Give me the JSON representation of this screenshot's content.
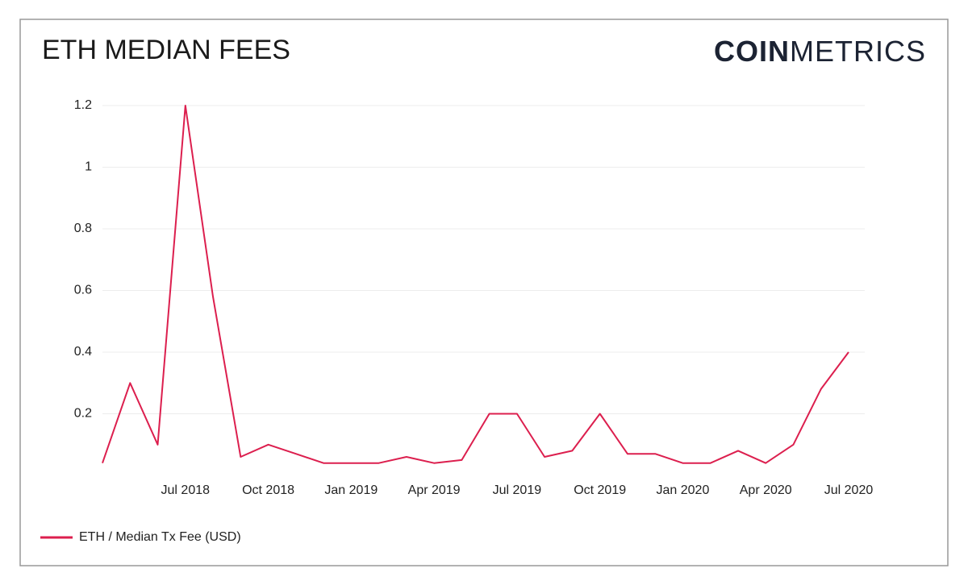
{
  "chart_data": {
    "type": "line",
    "title": "ETH MEDIAN FEES",
    "logo": {
      "bold": "COIN",
      "light": "METRICS"
    },
    "x": [
      "2018-04",
      "2018-05",
      "2018-06",
      "2018-07",
      "2018-08",
      "2018-09",
      "2018-10",
      "2018-11",
      "2018-12",
      "2019-01",
      "2019-02",
      "2019-03",
      "2019-04",
      "2019-05",
      "2019-06",
      "2019-07",
      "2019-08",
      "2019-09",
      "2019-10",
      "2019-11",
      "2019-12",
      "2020-01",
      "2020-02",
      "2020-03",
      "2020-04",
      "2020-05",
      "2020-06",
      "2020-07"
    ],
    "series": [
      {
        "name": "ETH / Median Tx Fee (USD)",
        "color": "#dc1f4e",
        "values": [
          0.04,
          0.3,
          0.1,
          1.2,
          0.58,
          0.06,
          0.1,
          0.07,
          0.04,
          0.04,
          0.04,
          0.06,
          0.04,
          0.05,
          0.2,
          0.2,
          0.06,
          0.08,
          0.2,
          0.07,
          0.07,
          0.04,
          0.04,
          0.08,
          0.04,
          0.1,
          0.28,
          0.4
        ]
      }
    ],
    "xlim": [
      "2018-04",
      "2020-07"
    ],
    "xticks": [
      {
        "value": "2018-07",
        "label": "Jul 2018"
      },
      {
        "value": "2018-10",
        "label": "Oct 2018"
      },
      {
        "value": "2019-01",
        "label": "Jan 2019"
      },
      {
        "value": "2019-04",
        "label": "Apr 2019"
      },
      {
        "value": "2019-07",
        "label": "Jul 2019"
      },
      {
        "value": "2019-10",
        "label": "Oct 2019"
      },
      {
        "value": "2020-01",
        "label": "Jan 2020"
      },
      {
        "value": "2020-04",
        "label": "Apr 2020"
      },
      {
        "value": "2020-07",
        "label": "Jul 2020"
      }
    ],
    "ylim": [
      0,
      1.2
    ],
    "yticks": [
      0.2,
      0.4,
      0.6,
      0.8,
      1,
      1.2
    ],
    "grid": true,
    "legend": "bottom-left"
  }
}
